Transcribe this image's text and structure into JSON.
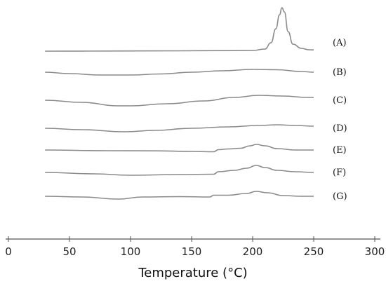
{
  "chart_data": {
    "type": "line",
    "xlabel": "Temperature (°C)",
    "ylabel": "",
    "xlim": [
      0,
      300
    ],
    "x_ticks": [
      0,
      50,
      100,
      150,
      200,
      250,
      300
    ],
    "grid": false,
    "legend": "none",
    "series": [
      {
        "name": "(A)",
        "points": [
          [
            30,
            0
          ],
          [
            60,
            0.1
          ],
          [
            100,
            0.3
          ],
          [
            140,
            0.55
          ],
          [
            180,
            0.8
          ],
          [
            200,
            1.0
          ],
          [
            210,
            3
          ],
          [
            215,
            12
          ],
          [
            219,
            32
          ],
          [
            222,
            52
          ],
          [
            224,
            62
          ],
          [
            226,
            56
          ],
          [
            229,
            28
          ],
          [
            233,
            10
          ],
          [
            240,
            4
          ],
          [
            246,
            2
          ],
          [
            250,
            1.8
          ]
        ]
      },
      {
        "name": "(B)",
        "points": [
          [
            30,
            0
          ],
          [
            50,
            -2
          ],
          [
            75,
            -4
          ],
          [
            100,
            -4
          ],
          [
            125,
            -2.5
          ],
          [
            150,
            0
          ],
          [
            175,
            2
          ],
          [
            200,
            4
          ],
          [
            220,
            3.5
          ],
          [
            240,
            1
          ],
          [
            250,
            0
          ]
        ]
      },
      {
        "name": "(C)",
        "points": [
          [
            30,
            0
          ],
          [
            60,
            -3
          ],
          [
            90,
            -8
          ],
          [
            100,
            -8
          ],
          [
            130,
            -5
          ],
          [
            160,
            -1
          ],
          [
            185,
            4
          ],
          [
            205,
            7
          ],
          [
            225,
            6
          ],
          [
            245,
            4
          ],
          [
            250,
            4
          ]
        ]
      },
      {
        "name": "(D)",
        "points": [
          [
            30,
            0
          ],
          [
            60,
            -2
          ],
          [
            95,
            -5
          ],
          [
            120,
            -3
          ],
          [
            150,
            0
          ],
          [
            180,
            2
          ],
          [
            205,
            4
          ],
          [
            220,
            5
          ],
          [
            235,
            4
          ],
          [
            250,
            3
          ]
        ]
      },
      {
        "name": "(E)",
        "points": [
          [
            30,
            0
          ],
          [
            80,
            -1
          ],
          [
            120,
            -1.2
          ],
          [
            150,
            -2
          ],
          [
            168,
            -2.5
          ],
          [
            172,
            0.5
          ],
          [
            180,
            1.5
          ],
          [
            190,
            2.5
          ],
          [
            198,
            6
          ],
          [
            203,
            8
          ],
          [
            210,
            6
          ],
          [
            220,
            2
          ],
          [
            235,
            0
          ],
          [
            250,
            0
          ]
        ]
      },
      {
        "name": "(F)",
        "points": [
          [
            30,
            0
          ],
          [
            70,
            -2
          ],
          [
            100,
            -4
          ],
          [
            140,
            -3
          ],
          [
            168,
            -2.5
          ],
          [
            172,
            1
          ],
          [
            185,
            3
          ],
          [
            195,
            6
          ],
          [
            203,
            10
          ],
          [
            210,
            7
          ],
          [
            220,
            3
          ],
          [
            235,
            1
          ],
          [
            250,
            0
          ]
        ]
      },
      {
        "name": "(G)",
        "points": [
          [
            30,
            0
          ],
          [
            60,
            -1
          ],
          [
            90,
            -4
          ],
          [
            110,
            -1
          ],
          [
            140,
            -0.5
          ],
          [
            165,
            -1
          ],
          [
            168,
            1.5
          ],
          [
            180,
            1.5
          ],
          [
            195,
            4
          ],
          [
            203,
            7
          ],
          [
            212,
            5
          ],
          [
            225,
            1
          ],
          [
            240,
            0
          ],
          [
            250,
            0
          ]
        ]
      }
    ]
  }
}
